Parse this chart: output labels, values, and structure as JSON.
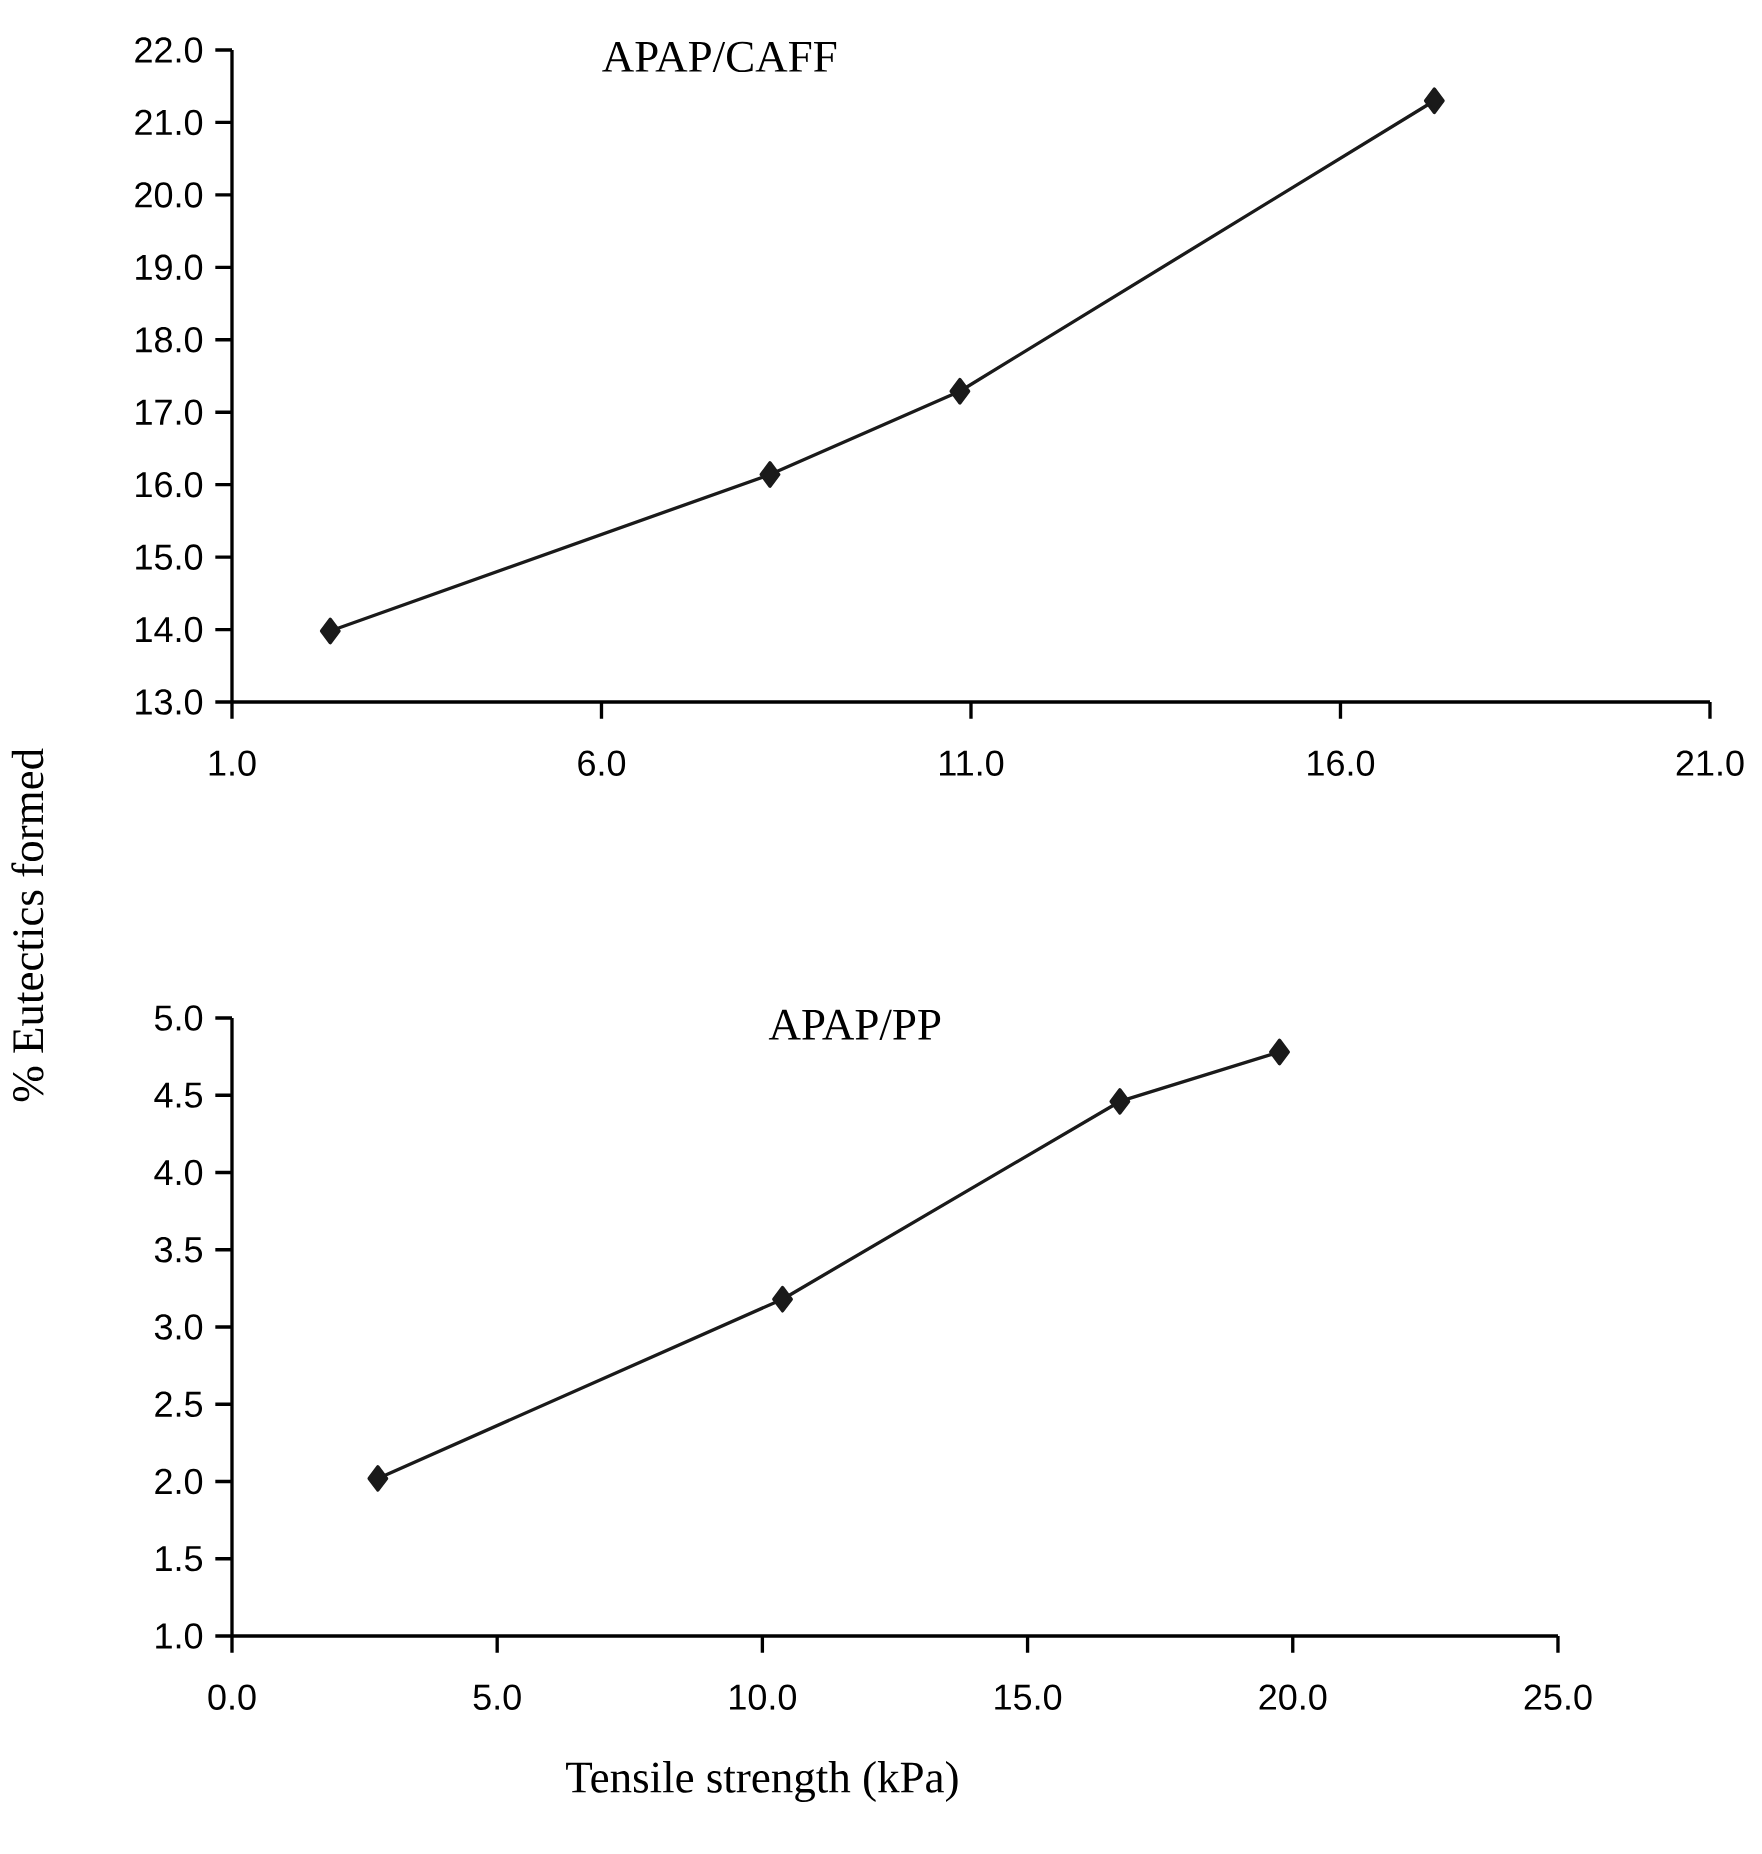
{
  "chart_data": [
    {
      "type": "line",
      "title": "APAP/CAFF",
      "marker": "diamond",
      "line_style": "solid",
      "x": [
        2.33,
        8.28,
        10.85,
        17.27
      ],
      "series": [
        {
          "color": "#1a1a1a",
          "values": [
            13.98,
            16.14,
            17.29,
            21.3
          ]
        }
      ],
      "xlim": [
        1,
        21
      ],
      "ylim": [
        13,
        22
      ],
      "xticks": [
        {
          "value": 1,
          "label": "1.0"
        },
        {
          "value": 6,
          "label": "6.0"
        },
        {
          "value": 11,
          "label": "11.0"
        },
        {
          "value": 16,
          "label": "16.0"
        },
        {
          "value": 21,
          "label": "21.0"
        }
      ],
      "yticks": [
        {
          "value": 13,
          "label": "13.0"
        },
        {
          "value": 14,
          "label": "14.0"
        },
        {
          "value": 15,
          "label": "15.0"
        },
        {
          "value": 16,
          "label": "16.0"
        },
        {
          "value": 17,
          "label": "17.0"
        },
        {
          "value": 18,
          "label": "18.0"
        },
        {
          "value": 19,
          "label": "19.0"
        },
        {
          "value": 20,
          "label": "20.0"
        },
        {
          "value": 21,
          "label": "21.0"
        },
        {
          "value": 22,
          "label": "22.0"
        }
      ]
    },
    {
      "type": "line",
      "title": "APAP/PP",
      "xlabel": "Tensile strength (kPa)",
      "ylabel": "% Eutectics formed",
      "marker": "diamond",
      "line_style": "solid",
      "x": [
        2.75,
        10.38,
        16.74,
        19.75
      ],
      "series": [
        {
          "color": "#1a1a1a",
          "values": [
            2.02,
            3.18,
            4.46,
            4.78
          ]
        }
      ],
      "xlim": [
        0,
        25
      ],
      "ylim": [
        1,
        5
      ],
      "xticks": [
        {
          "value": 0,
          "label": "0.0"
        },
        {
          "value": 5,
          "label": "5.0"
        },
        {
          "value": 10,
          "label": "10.0"
        },
        {
          "value": 15,
          "label": "15.0"
        },
        {
          "value": 20,
          "label": "20.0"
        },
        {
          "value": 25,
          "label": "25.0"
        }
      ],
      "yticks": [
        {
          "value": 1,
          "label": "1.0"
        },
        {
          "value": 1.5,
          "label": "1.5"
        },
        {
          "value": 2,
          "label": "2.0"
        },
        {
          "value": 2.5,
          "label": "2.5"
        },
        {
          "value": 3,
          "label": "3.0"
        },
        {
          "value": 3.5,
          "label": "3.5"
        },
        {
          "value": 4,
          "label": "4.0"
        },
        {
          "value": 4.5,
          "label": "4.5"
        },
        {
          "value": 5,
          "label": "5.0"
        }
      ]
    }
  ]
}
